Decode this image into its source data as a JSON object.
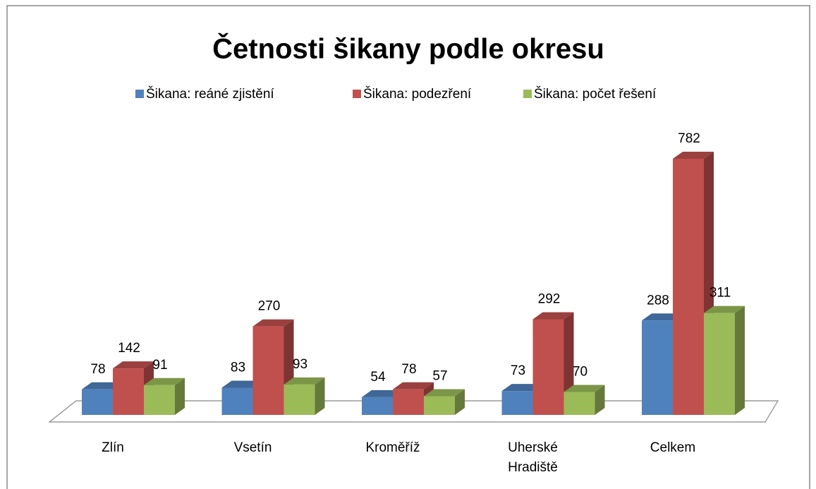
{
  "chart_data": {
    "type": "bar3d",
    "title": "Četnosti šikany podle okresu",
    "categories": [
      "Zlín",
      "Vsetín",
      "Kroměříž",
      "Uherské Hradiště",
      "Celkem"
    ],
    "series": [
      {
        "name": "Šikana: reáné zjistění",
        "color": "#4f81bd",
        "values": [
          78,
          83,
          54,
          73,
          288
        ]
      },
      {
        "name": "Šikana: podezření",
        "color": "#c0504d",
        "values": [
          142,
          270,
          78,
          292,
          782
        ]
      },
      {
        "name": "Šikana: počet řešení",
        "color": "#9bbb59",
        "values": [
          91,
          93,
          57,
          70,
          311
        ]
      }
    ],
    "legend": "top"
  }
}
